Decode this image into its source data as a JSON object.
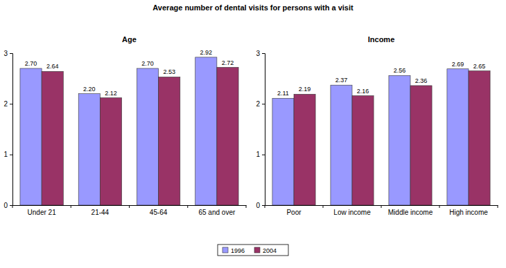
{
  "title": "Average number of dental visits for persons with a visit",
  "chart_data": [
    {
      "type": "bar",
      "title": "Age",
      "categories": [
        "Under 21",
        "21-44",
        "45-64",
        "65 and over"
      ],
      "series": [
        {
          "name": "1996",
          "color": "#9999ff",
          "values": [
            2.7,
            2.2,
            2.7,
            2.92
          ],
          "value_labels": [
            "2.70",
            "2.20",
            "2.70",
            "2.92"
          ]
        },
        {
          "name": "2004",
          "color": "#993366",
          "values": [
            2.64,
            2.12,
            2.53,
            2.72
          ],
          "value_labels": [
            "2.64",
            "2.12",
            "2.53",
            "2.72"
          ]
        }
      ],
      "ylim": [
        0,
        3
      ],
      "yticks": [
        0,
        1,
        2,
        3
      ],
      "grid": false,
      "data_labels": true,
      "legend": "bottom"
    },
    {
      "type": "bar",
      "title": "Income",
      "categories": [
        "Poor",
        "Low income",
        "Middle income",
        "High income"
      ],
      "series": [
        {
          "name": "1996",
          "color": "#9999ff",
          "values": [
            2.11,
            2.37,
            2.56,
            2.69
          ],
          "value_labels": [
            "2.11",
            "2.37",
            "2.56",
            "2.69"
          ]
        },
        {
          "name": "2004",
          "color": "#993366",
          "values": [
            2.19,
            2.16,
            2.36,
            2.65
          ],
          "value_labels": [
            "2.19",
            "2.16",
            "2.36",
            "2.65"
          ]
        }
      ],
      "ylim": [
        0,
        3
      ],
      "yticks": [
        0,
        1,
        2,
        3
      ],
      "grid": false,
      "data_labels": true,
      "legend": "bottom"
    }
  ]
}
